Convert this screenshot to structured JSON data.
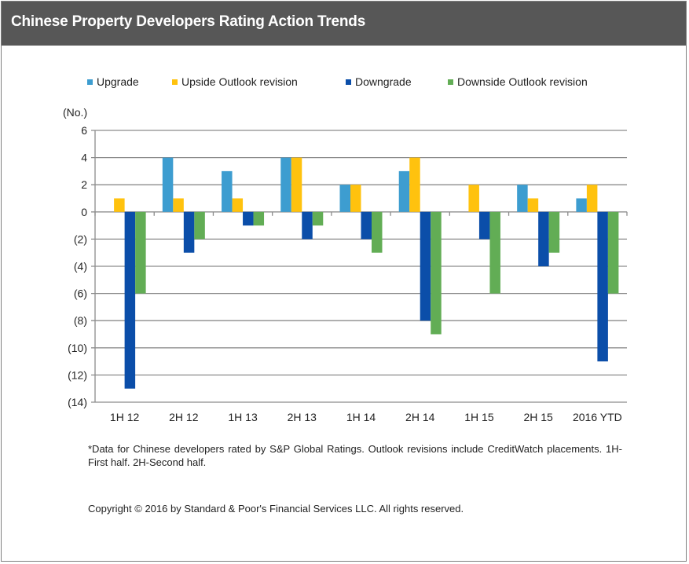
{
  "header": {
    "title": "Chinese Property Developers Rating Action Trends"
  },
  "chart_data": {
    "type": "bar",
    "title": "Chinese Property Developers Rating Action Trends",
    "ylabel": "(No.)",
    "xlabel": "",
    "ylim": [
      -14,
      6
    ],
    "yticks": [
      6,
      4,
      2,
      0,
      -2,
      -4,
      -6,
      -8,
      -10,
      -12,
      -14
    ],
    "ytick_labels": [
      "6",
      "4",
      "2",
      "0",
      "(2)",
      "(4)",
      "(6)",
      "(8)",
      "(10)",
      "(12)",
      "(14)"
    ],
    "grid": true,
    "legend_position": "top",
    "categories": [
      "1H 12",
      "2H 12",
      "1H 13",
      "2H 13",
      "1H 14",
      "2H 14",
      "1H 15",
      "2H 15",
      "2016 YTD"
    ],
    "series": [
      {
        "name": "Upgrade",
        "color": "#3d9dd0",
        "values": [
          0,
          4,
          3,
          4,
          2,
          3,
          0,
          2,
          1
        ]
      },
      {
        "name": "Upside Outlook revision",
        "color": "#ffc20e",
        "values": [
          1,
          1,
          1,
          4,
          2,
          4,
          2,
          1,
          2
        ]
      },
      {
        "name": "Downgrade",
        "color": "#0b4ea9",
        "values": [
          -13,
          -3,
          -1,
          -2,
          -2,
          -8,
          -2,
          -4,
          -11
        ]
      },
      {
        "name": "Downside Outlook revision",
        "color": "#62ad55",
        "values": [
          -6,
          -2,
          -1,
          -1,
          -3,
          -9,
          -6,
          -3,
          -6
        ]
      }
    ]
  },
  "footnote": "*Data for Chinese developers rated by S&P Global Ratings. Outlook revisions  include CreditWatch placements. 1H-First half. 2H-Second half.",
  "copyright": "Copyright © 2016 by Standard & Poor's Financial Services LLC. All rights reserved."
}
